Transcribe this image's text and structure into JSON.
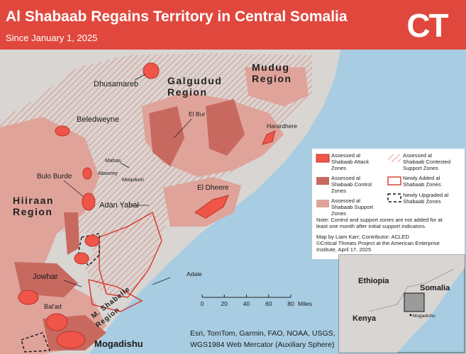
{
  "header": {
    "title": "Al Shabaab Regains Territory in Central Somalia",
    "subtitle": "Since January 1, 2025",
    "logo": "CT"
  },
  "places": [
    "Dhusamareb",
    "El Bur",
    "Harardhere",
    "Beledweyne",
    "Mahas",
    "Aboorey",
    "Moqokori",
    "Bulo Burde",
    "El Dheere",
    "Adan Yabal",
    "Adale",
    "Jowhar",
    "Bal'ad",
    "Mogadishu"
  ],
  "regions": [
    [
      "Galgudud",
      "Region"
    ],
    [
      "Mudug",
      "Region"
    ],
    [
      "Hiiraan",
      "Region"
    ],
    [
      "M. Shabelle",
      "Region"
    ]
  ],
  "scale": {
    "ticks": [
      0,
      20,
      40,
      60,
      80
    ],
    "unit": "Miles"
  },
  "source": [
    "Esri, TomTom, Garmin, FAO, NOAA, USGS,",
    "WGS1984 Web Mercator (Auxiliary Sphere)"
  ],
  "legend": {
    "items": [
      [
        "Assessed al",
        "Shabaab Attack",
        "Zones"
      ],
      [
        "Assessed al",
        "Shabaab Contested",
        "Support Zones"
      ],
      [
        "Assessed al",
        "Shabaab Control",
        "Zones"
      ],
      [
        "Newly Added al",
        "Shabaab Zones"
      ],
      [
        "Assessed al",
        "Shabaab Support",
        "Zones"
      ],
      [
        "Newly Upgraded al",
        "Shabaab Zones"
      ]
    ],
    "note": [
      "Note: Control and support zones are not added for at",
      "least one month after initial support indicators."
    ],
    "credit": [
      "Map by Liam Karr; Contributor: ACLED",
      "©Critical Threats Project at the American Enterprise",
      "Institute, April 17, 2025"
    ]
  },
  "inset": [
    "Ethiopia",
    "Somalia",
    "Kenya",
    "Mogadishu"
  ]
}
